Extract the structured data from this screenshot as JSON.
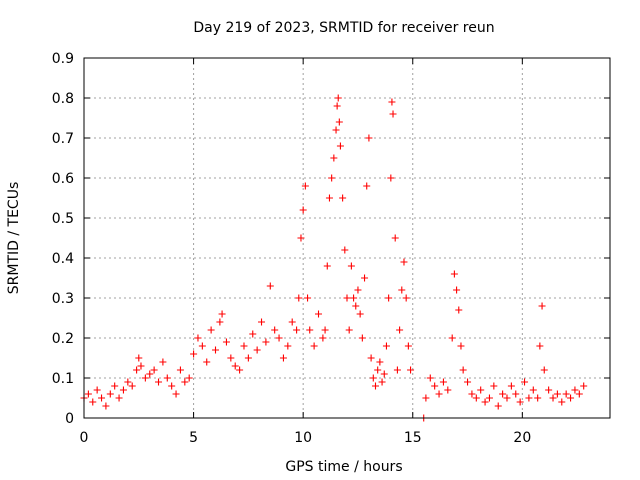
{
  "chart_data": {
    "type": "scatter",
    "title": "Day 219 of 2023, SRMTID for receiver reun",
    "xlabel": "GPS time / hours",
    "ylabel": "SRMTID / TECUs",
    "xlim": [
      0,
      24
    ],
    "ylim": [
      0,
      0.9
    ],
    "xticks": [
      0,
      5,
      10,
      15,
      20
    ],
    "xtick_labels": [
      "0",
      "5",
      "10",
      "15",
      "20"
    ],
    "yticks": [
      0,
      0.1,
      0.2,
      0.3,
      0.4,
      0.5,
      0.6,
      0.7,
      0.8,
      0.9
    ],
    "ytick_labels": [
      "0",
      "0.1",
      "0.2",
      "0.3",
      "0.4",
      "0.5",
      "0.6",
      "0.7",
      "0.8",
      "0.9"
    ],
    "grid": true,
    "marker": "plus",
    "series": [
      {
        "name": "SRMTID",
        "color": "#ff0000",
        "x": [
          0.0,
          0.2,
          0.4,
          0.6,
          0.8,
          1.0,
          1.2,
          1.4,
          1.6,
          1.8,
          2.0,
          2.2,
          2.4,
          2.5,
          2.6,
          2.8,
          3.0,
          3.2,
          3.4,
          3.6,
          3.8,
          4.0,
          4.2,
          4.4,
          4.6,
          4.8,
          5.0,
          5.2,
          5.4,
          5.6,
          5.8,
          6.0,
          6.2,
          6.3,
          6.5,
          6.7,
          6.9,
          7.1,
          7.3,
          7.5,
          7.7,
          7.9,
          8.1,
          8.3,
          8.5,
          8.7,
          8.9,
          9.1,
          9.3,
          9.5,
          9.7,
          9.8,
          9.9,
          10.0,
          10.1,
          10.2,
          10.3,
          10.5,
          10.7,
          10.9,
          11.0,
          11.1,
          11.2,
          11.3,
          11.4,
          11.5,
          11.55,
          11.6,
          11.65,
          11.7,
          11.8,
          11.9,
          12.0,
          12.1,
          12.2,
          12.3,
          12.4,
          12.5,
          12.6,
          12.7,
          12.8,
          12.9,
          13.0,
          13.1,
          13.2,
          13.3,
          13.4,
          13.5,
          13.6,
          13.7,
          13.8,
          13.9,
          14.0,
          14.05,
          14.1,
          14.2,
          14.3,
          14.4,
          14.5,
          14.6,
          14.7,
          14.8,
          14.9,
          15.5,
          15.6,
          15.8,
          16.0,
          16.2,
          16.4,
          16.6,
          16.8,
          16.9,
          17.0,
          17.1,
          17.2,
          17.3,
          17.5,
          17.7,
          17.9,
          18.1,
          18.3,
          18.5,
          18.7,
          18.9,
          19.1,
          19.3,
          19.5,
          19.7,
          19.9,
          20.1,
          20.3,
          20.5,
          20.7,
          20.8,
          20.9,
          21.0,
          21.2,
          21.4,
          21.6,
          21.8,
          22.0,
          22.2,
          22.4,
          22.6,
          22.8
        ],
        "y": [
          0.05,
          0.06,
          0.04,
          0.07,
          0.05,
          0.03,
          0.06,
          0.08,
          0.05,
          0.07,
          0.09,
          0.08,
          0.12,
          0.15,
          0.13,
          0.1,
          0.11,
          0.12,
          0.09,
          0.14,
          0.1,
          0.08,
          0.06,
          0.12,
          0.09,
          0.1,
          0.16,
          0.2,
          0.18,
          0.14,
          0.22,
          0.17,
          0.24,
          0.26,
          0.19,
          0.15,
          0.13,
          0.12,
          0.18,
          0.15,
          0.21,
          0.17,
          0.24,
          0.19,
          0.33,
          0.22,
          0.2,
          0.15,
          0.18,
          0.24,
          0.22,
          0.3,
          0.45,
          0.52,
          0.58,
          0.3,
          0.22,
          0.18,
          0.26,
          0.2,
          0.22,
          0.38,
          0.55,
          0.6,
          0.65,
          0.72,
          0.78,
          0.8,
          0.74,
          0.68,
          0.55,
          0.42,
          0.3,
          0.22,
          0.38,
          0.3,
          0.28,
          0.32,
          0.26,
          0.2,
          0.35,
          0.58,
          0.7,
          0.15,
          0.1,
          0.08,
          0.12,
          0.14,
          0.09,
          0.11,
          0.18,
          0.3,
          0.6,
          0.79,
          0.76,
          0.45,
          0.12,
          0.22,
          0.32,
          0.39,
          0.3,
          0.18,
          0.12,
          0.0,
          0.05,
          0.1,
          0.08,
          0.06,
          0.09,
          0.07,
          0.2,
          0.36,
          0.32,
          0.27,
          0.18,
          0.12,
          0.09,
          0.06,
          0.05,
          0.07,
          0.04,
          0.05,
          0.08,
          0.03,
          0.06,
          0.05,
          0.08,
          0.06,
          0.04,
          0.09,
          0.05,
          0.07,
          0.05,
          0.18,
          0.28,
          0.12,
          0.07,
          0.05,
          0.06,
          0.04,
          0.06,
          0.05,
          0.07,
          0.06,
          0.08
        ]
      }
    ]
  }
}
